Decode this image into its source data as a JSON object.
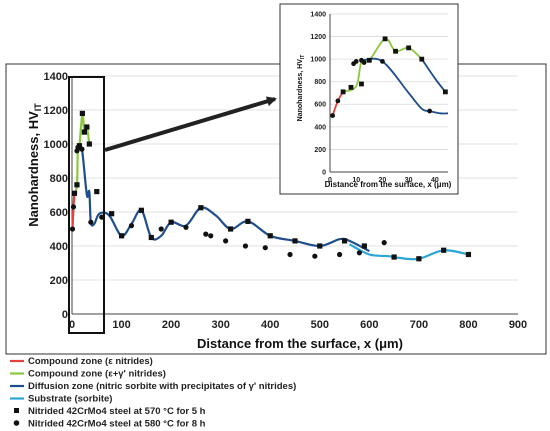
{
  "chart_data": [
    {
      "type": "line",
      "xlabel": "Distance from the surface, x (μm)",
      "ylabel": "Nanohardness, HV",
      "ylabel_sub": "IT",
      "xlim": [
        0,
        900
      ],
      "ylim": [
        0,
        1400
      ],
      "x_ticks": [
        "0",
        "100",
        "200",
        "300",
        "400",
        "500",
        "600",
        "700",
        "800",
        "900"
      ],
      "y_ticks": [
        "0",
        "200",
        "400",
        "600",
        "800",
        "1000",
        "1200",
        "1400"
      ],
      "grid": true,
      "series": [
        {
          "name": "Compound zone (ε nitrides)",
          "color": "#e8413c",
          "x": [
            1,
            3,
            5
          ],
          "y": [
            500,
            630,
            710
          ]
        },
        {
          "name": "Compound zone (ε+γ' nitrides)",
          "color": "#8dc63f",
          "x": [
            5,
            10,
            12,
            15,
            21,
            25,
            30,
            35
          ],
          "y": [
            710,
            760,
            980,
            990,
            1180,
            1070,
            1100,
            1000
          ]
        },
        {
          "name": "Diffusion zone (nitric sorbite with precipitates of γ' nitrides)",
          "color": "#1f4e8c",
          "x": [
            12,
            20,
            30,
            35,
            38,
            45,
            55,
            75,
            100,
            120,
            140,
            160,
            180,
            200,
            230,
            260,
            290,
            320,
            355,
            400,
            450,
            500,
            540,
            560,
            600
          ],
          "y": [
            980,
            970,
            700,
            720,
            540,
            530,
            590,
            580,
            460,
            530,
            610,
            450,
            460,
            540,
            520,
            625,
            580,
            500,
            545,
            460,
            430,
            400,
            440,
            430,
            370
          ]
        },
        {
          "name": "Substrate (sorbite)",
          "color": "#2aa6d6",
          "x": [
            560,
            600,
            640,
            660,
            700,
            750,
            800
          ],
          "y": [
            410,
            350,
            340,
            330,
            325,
            375,
            350
          ]
        }
      ],
      "markers": [
        {
          "name": "Nitrided 42CrMo4 steel at 570 °C for 5 h",
          "shape": "square",
          "x": [
            5,
            10,
            15,
            21,
            25,
            30,
            35,
            50,
            80,
            100,
            140,
            160,
            200,
            260,
            320,
            355,
            400,
            450,
            500,
            550,
            590,
            650,
            700,
            750,
            800
          ],
          "y": [
            710,
            760,
            990,
            1180,
            1070,
            1100,
            1000,
            720,
            590,
            460,
            610,
            450,
            540,
            625,
            500,
            545,
            460,
            430,
            400,
            430,
            400,
            335,
            325,
            375,
            350
          ]
        },
        {
          "name": "Nitrided 42CrMo4 steel at 580 °C for 8 h",
          "shape": "circle",
          "x": [
            1,
            3,
            10,
            12,
            20,
            38,
            60,
            120,
            180,
            230,
            270,
            280,
            310,
            350,
            390,
            440,
            490,
            540,
            580,
            630
          ],
          "y": [
            500,
            630,
            960,
            980,
            970,
            540,
            570,
            520,
            500,
            510,
            470,
            460,
            430,
            400,
            390,
            350,
            340,
            350,
            360,
            420
          ]
        }
      ]
    },
    {
      "type": "line",
      "inset": true,
      "xlabel": "Distance from the surface, x (μm)",
      "ylabel": "Nanohardness, HV",
      "ylabel_sub": "IT",
      "xlim": [
        0,
        45
      ],
      "ylim": [
        0,
        1400
      ],
      "x_ticks": [
        "0",
        "10",
        "20",
        "30",
        "40"
      ],
      "y_ticks": [
        "0",
        "200",
        "400",
        "600",
        "800",
        "1000",
        "1200",
        "1400"
      ],
      "series": [
        {
          "color": "#e8413c",
          "x": [
            1,
            3,
            5
          ],
          "y": [
            500,
            630,
            710
          ]
        },
        {
          "color": "#8dc63f",
          "x": [
            5,
            10,
            12,
            15,
            21,
            25,
            30,
            35
          ],
          "y": [
            710,
            760,
            980,
            990,
            1180,
            1070,
            1100,
            1000
          ]
        },
        {
          "color": "#1f4e8c",
          "x": [
            12,
            20,
            30,
            35,
            38,
            42,
            45
          ],
          "y": [
            990,
            980,
            700,
            560,
            540,
            520,
            520
          ]
        },
        {
          "color": "#1f4e8c",
          "x": [
            35,
            40,
            44
          ],
          "y": [
            1000,
            830,
            710
          ]
        }
      ],
      "markers": [
        {
          "shape": "square",
          "x": [
            5,
            8,
            12,
            15,
            21,
            25,
            30,
            35,
            44
          ],
          "y": [
            710,
            750,
            780,
            990,
            1180,
            1070,
            1100,
            1000,
            710
          ]
        },
        {
          "shape": "circle",
          "x": [
            1,
            3,
            9,
            10,
            12,
            13,
            20,
            38
          ],
          "y": [
            500,
            630,
            960,
            980,
            990,
            970,
            980,
            540
          ]
        }
      ]
    }
  ]
}
